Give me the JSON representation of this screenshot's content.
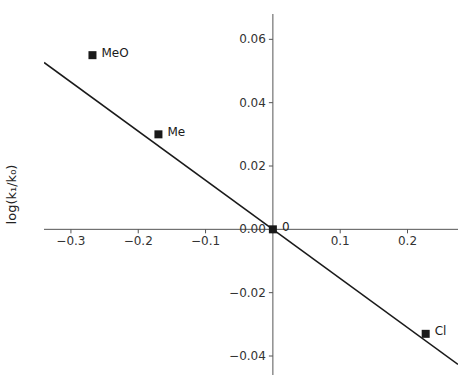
{
  "chart_data": {
    "type": "scatter",
    "y_label": "log(k₁/k₀)",
    "series": [
      {
        "type": "scatter",
        "marker": "square",
        "color": "#1a1a1a",
        "x": [
          -0.268,
          -0.17,
          0.0,
          0.227
        ],
        "values": [
          0.055,
          0.03,
          0.0,
          -0.033
        ]
      },
      {
        "type": "line",
        "line_style": "solid",
        "color": "#1a1a1a",
        "x": [
          -0.34,
          0.275
        ],
        "values": [
          0.0527,
          -0.042625
        ]
      }
    ],
    "annotations": [
      {
        "text": "MeO",
        "x": -0.268,
        "y": 0.055
      },
      {
        "text": "Me",
        "x": -0.17,
        "y": 0.03
      },
      {
        "text": "0",
        "x": 0.0,
        "y": 0.0
      },
      {
        "text": "Cl",
        "x": 0.227,
        "y": -0.033
      }
    ],
    "xlim": [
      -0.34,
      0.275
    ],
    "ylim": [
      -0.046,
      0.068
    ],
    "xticks": [
      {
        "value": -0.3,
        "label": "−0.3"
      },
      {
        "value": -0.2,
        "label": "−0.2"
      },
      {
        "value": -0.1,
        "label": "−0.1"
      },
      {
        "value": 0.0,
        "label": null
      },
      0.1,
      0.2
    ],
    "yticks": [
      {
        "value": -0.04,
        "label": "−0.04"
      },
      {
        "value": -0.02,
        "label": "−0.02"
      },
      {
        "value": 0.0,
        "label": "0.00"
      },
      0.02,
      0.04,
      0.06
    ],
    "grid": false
  }
}
